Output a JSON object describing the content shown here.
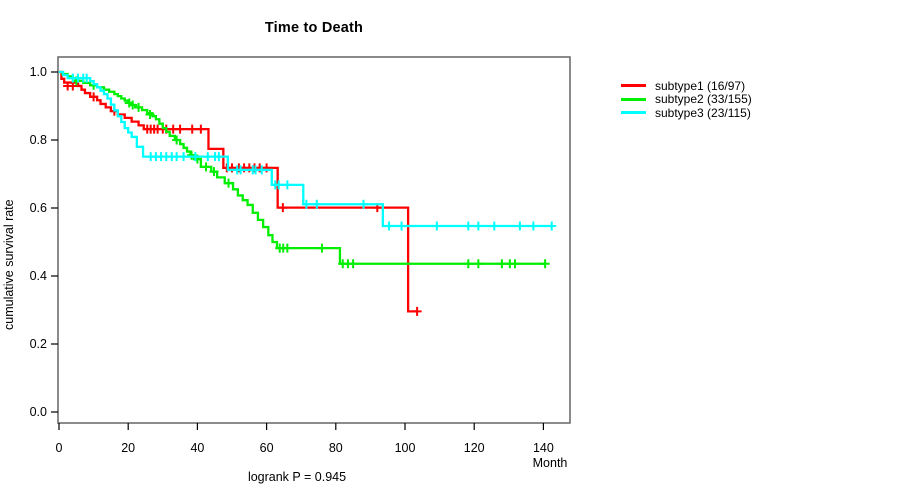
{
  "chart": {
    "title": "Time to Death",
    "xlabel": "Month",
    "ylabel": "cumulative survival rate",
    "footer": "logrank P = 0.945"
  },
  "legend": {
    "items": [
      {
        "label": "subtype1 (16/97)",
        "color": "#ff0000"
      },
      {
        "label": "subtype2 (33/155)",
        "color": "#00ee00"
      },
      {
        "label": "subtype3 (23/115)",
        "color": "#00ffff"
      }
    ]
  },
  "chart_data": {
    "type": "line",
    "variant": "kaplan-meier-step",
    "title": "Time to Death",
    "xlabel": "Month",
    "ylabel": "cumulative survival rate",
    "annotation": "logrank P = 0.945",
    "xlim": [
      0,
      147.7
    ],
    "ylim": [
      0.0,
      1.0
    ],
    "x_ticks": [
      0,
      20,
      40,
      60,
      80,
      100,
      120,
      140
    ],
    "y_ticks": [
      0.0,
      0.2,
      0.4,
      0.6,
      0.8,
      1.0
    ],
    "grid": false,
    "legend_position": "right-outside",
    "series": [
      {
        "name": "subtype1",
        "events_over_n": "16/97",
        "color": "#ff0000",
        "end_month": 103.5,
        "points": [
          [
            0,
            1.0
          ],
          [
            0.7,
            0.98
          ],
          [
            1.5,
            0.969
          ],
          [
            5.5,
            0.959
          ],
          [
            6.5,
            0.948
          ],
          [
            7.5,
            0.938
          ],
          [
            9,
            0.927
          ],
          [
            11,
            0.917
          ],
          [
            12,
            0.906
          ],
          [
            13.5,
            0.896
          ],
          [
            15,
            0.885
          ],
          [
            17,
            0.875
          ],
          [
            19,
            0.865
          ],
          [
            21,
            0.854
          ],
          [
            23,
            0.843
          ],
          [
            24.5,
            0.832
          ],
          [
            43.2,
            0.774
          ],
          [
            47.5,
            0.718
          ],
          [
            63.2,
            0.601
          ],
          [
            100.9,
            0.296
          ]
        ],
        "censors": [
          [
            2.5,
            0.959
          ],
          [
            4,
            0.959
          ],
          [
            10,
            0.927
          ],
          [
            16,
            0.885
          ],
          [
            25.5,
            0.832
          ],
          [
            26.5,
            0.832
          ],
          [
            27.5,
            0.832
          ],
          [
            28.5,
            0.832
          ],
          [
            30,
            0.832
          ],
          [
            31,
            0.832
          ],
          [
            33,
            0.832
          ],
          [
            35,
            0.832
          ],
          [
            38.5,
            0.832
          ],
          [
            41,
            0.832
          ],
          [
            48.5,
            0.718
          ],
          [
            50,
            0.718
          ],
          [
            52,
            0.718
          ],
          [
            53.5,
            0.718
          ],
          [
            55,
            0.718
          ],
          [
            56.5,
            0.718
          ],
          [
            58,
            0.718
          ],
          [
            60,
            0.718
          ],
          [
            64.7,
            0.601
          ],
          [
            92,
            0.601
          ],
          [
            103.5,
            0.296
          ]
        ]
      },
      {
        "name": "subtype2",
        "events_over_n": "33/155",
        "color": "#00ee00",
        "end_month": 140.6,
        "points": [
          [
            0,
            1.0
          ],
          [
            1,
            0.994
          ],
          [
            2.5,
            0.987
          ],
          [
            4,
            0.981
          ],
          [
            5.5,
            0.974
          ],
          [
            7,
            0.968
          ],
          [
            9,
            0.961
          ],
          [
            11,
            0.955
          ],
          [
            13,
            0.948
          ],
          [
            14.5,
            0.942
          ],
          [
            16,
            0.935
          ],
          [
            17,
            0.929
          ],
          [
            18,
            0.922
          ],
          [
            19,
            0.916
          ],
          [
            20,
            0.909
          ],
          [
            21,
            0.903
          ],
          [
            22,
            0.896
          ],
          [
            24,
            0.888
          ],
          [
            25.5,
            0.879
          ],
          [
            27,
            0.87
          ],
          [
            28,
            0.861
          ],
          [
            29,
            0.848
          ],
          [
            30,
            0.835
          ],
          [
            31,
            0.824
          ],
          [
            32,
            0.812
          ],
          [
            33.5,
            0.8
          ],
          [
            35,
            0.788
          ],
          [
            36,
            0.777
          ],
          [
            37,
            0.766
          ],
          [
            38,
            0.755
          ],
          [
            39,
            0.744
          ],
          [
            41,
            0.721
          ],
          [
            44,
            0.707
          ],
          [
            45.7,
            0.69
          ],
          [
            47.9,
            0.673
          ],
          [
            50.3,
            0.655
          ],
          [
            51.7,
            0.637
          ],
          [
            53.1,
            0.623
          ],
          [
            54.5,
            0.609
          ],
          [
            56,
            0.586
          ],
          [
            57.5,
            0.565
          ],
          [
            59,
            0.544
          ],
          [
            60.5,
            0.52
          ],
          [
            61.7,
            0.5
          ],
          [
            63,
            0.482
          ],
          [
            81.2,
            0.436
          ]
        ],
        "censors": [
          [
            5,
            0.974
          ],
          [
            10,
            0.961
          ],
          [
            20.3,
            0.909
          ],
          [
            21.3,
            0.903
          ],
          [
            23,
            0.896
          ],
          [
            26.3,
            0.875
          ],
          [
            34,
            0.8
          ],
          [
            38.3,
            0.755
          ],
          [
            40,
            0.744
          ],
          [
            42.5,
            0.721
          ],
          [
            44.8,
            0.707
          ],
          [
            49,
            0.673
          ],
          [
            63.8,
            0.482
          ],
          [
            64.8,
            0.482
          ],
          [
            66,
            0.482
          ],
          [
            76,
            0.482
          ],
          [
            82,
            0.436
          ],
          [
            83.5,
            0.436
          ],
          [
            85,
            0.436
          ],
          [
            118.3,
            0.436
          ],
          [
            121.2,
            0.436
          ],
          [
            128,
            0.436
          ],
          [
            130.3,
            0.436
          ],
          [
            131.8,
            0.436
          ],
          [
            140.5,
            0.436
          ]
        ]
      },
      {
        "name": "subtype3",
        "events_over_n": "23/115",
        "color": "#00ffff",
        "end_month": 142.6,
        "points": [
          [
            0,
            1.0
          ],
          [
            1.2,
            0.991
          ],
          [
            2.5,
            0.982
          ],
          [
            9,
            0.973
          ],
          [
            10,
            0.964
          ],
          [
            11,
            0.955
          ],
          [
            12,
            0.945
          ],
          [
            13,
            0.935
          ],
          [
            14,
            0.922
          ],
          [
            15,
            0.904
          ],
          [
            16,
            0.887
          ],
          [
            17,
            0.87
          ],
          [
            18,
            0.853
          ],
          [
            19,
            0.835
          ],
          [
            20,
            0.822
          ],
          [
            21,
            0.809
          ],
          [
            22.5,
            0.78
          ],
          [
            24.3,
            0.751
          ],
          [
            48.8,
            0.712
          ],
          [
            61.5,
            0.668
          ],
          [
            70.6,
            0.611
          ],
          [
            93.6,
            0.547
          ]
        ],
        "censors": [
          [
            4,
            0.982
          ],
          [
            5.5,
            0.982
          ],
          [
            7,
            0.982
          ],
          [
            8,
            0.982
          ],
          [
            26.5,
            0.751
          ],
          [
            28,
            0.751
          ],
          [
            29.5,
            0.751
          ],
          [
            31,
            0.751
          ],
          [
            32.6,
            0.751
          ],
          [
            34,
            0.751
          ],
          [
            36,
            0.751
          ],
          [
            39.4,
            0.751
          ],
          [
            43,
            0.751
          ],
          [
            45.1,
            0.751
          ],
          [
            46.2,
            0.751
          ],
          [
            51.5,
            0.712
          ],
          [
            52.5,
            0.712
          ],
          [
            56,
            0.712
          ],
          [
            56.8,
            0.712
          ],
          [
            58.6,
            0.712
          ],
          [
            62.5,
            0.668
          ],
          [
            63.5,
            0.668
          ],
          [
            66,
            0.668
          ],
          [
            71.5,
            0.611
          ],
          [
            74.5,
            0.611
          ],
          [
            88,
            0.611
          ],
          [
            95.4,
            0.547
          ],
          [
            99,
            0.547
          ],
          [
            109.2,
            0.547
          ],
          [
            118.3,
            0.547
          ],
          [
            121.2,
            0.547
          ],
          [
            125.8,
            0.547
          ],
          [
            133.2,
            0.547
          ],
          [
            137.1,
            0.547
          ],
          [
            142.4,
            0.547
          ]
        ]
      }
    ]
  }
}
